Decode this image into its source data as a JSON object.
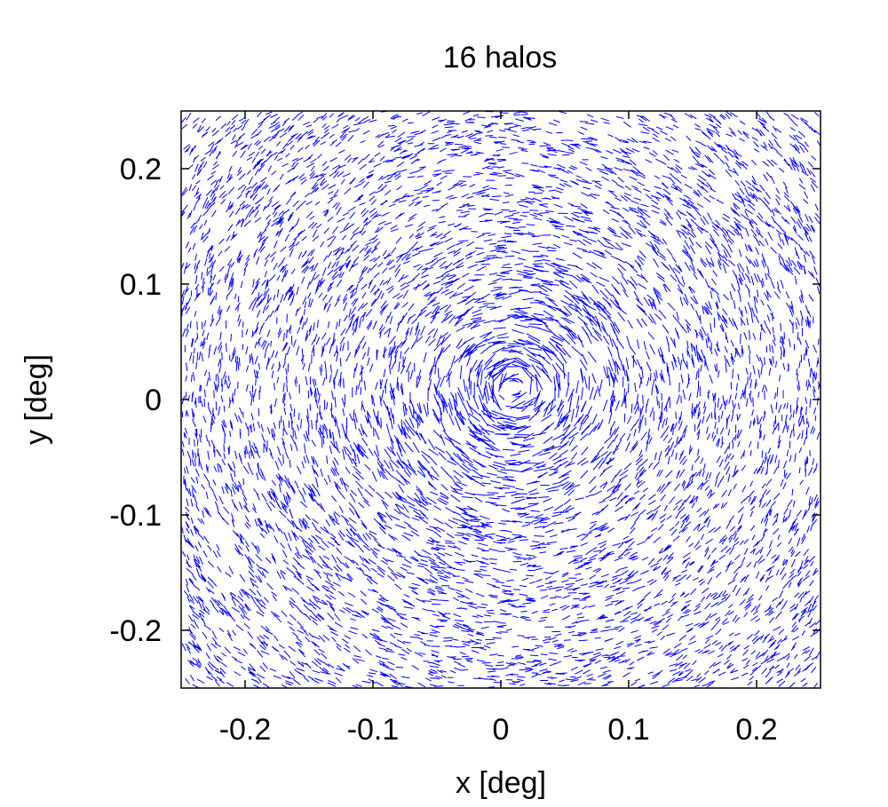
{
  "chart_data": {
    "type": "vector-field",
    "title": "16 halos",
    "xlabel": "x [deg]",
    "ylabel": "y [deg]",
    "xlim": [
      -0.25,
      0.25
    ],
    "ylim": [
      -0.25,
      0.25
    ],
    "xticks": [
      {
        "value": -0.2,
        "label": "-0.2"
      },
      {
        "value": -0.1,
        "label": "-0.1"
      },
      {
        "value": 0,
        "label": "0"
      },
      {
        "value": 0.1,
        "label": "0.1"
      },
      {
        "value": 0.2,
        "label": "0.2"
      }
    ],
    "yticks": [
      {
        "value": -0.2,
        "label": "-0.2"
      },
      {
        "value": -0.1,
        "label": "-0.1"
      },
      {
        "value": 0,
        "label": "0"
      },
      {
        "value": 0.1,
        "label": "0.1"
      },
      {
        "value": 0.2,
        "label": "0.2"
      }
    ],
    "grid": false,
    "series": [
      {
        "color": "#0000ff",
        "description_of_field": "tangential shear sticks around an elongated mass concentration along the diagonal near the center",
        "center": [
          0.01,
          0.01
        ],
        "major_axis_angle_deg": 40
      }
    ]
  }
}
